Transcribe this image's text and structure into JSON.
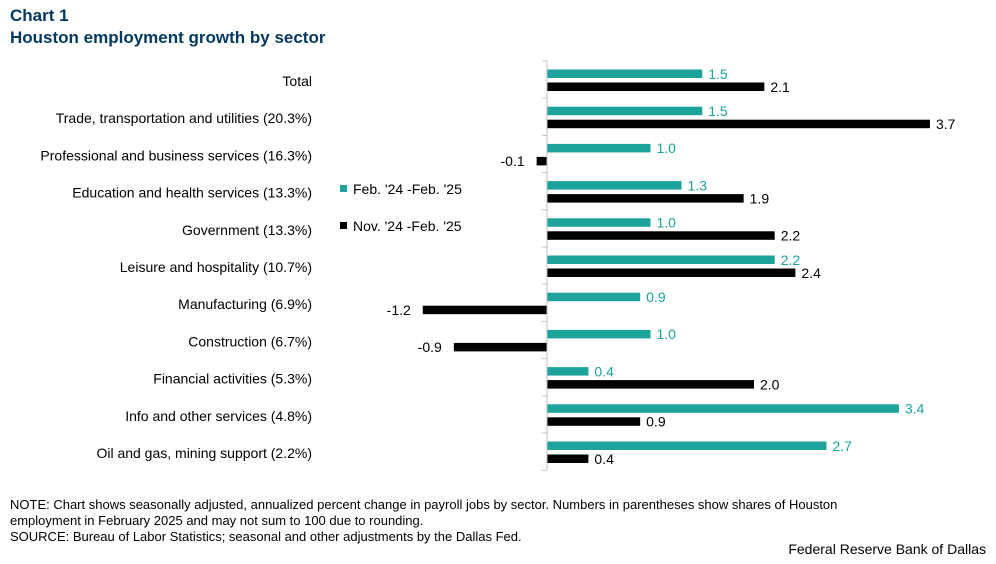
{
  "chart_data": {
    "type": "bar",
    "orientation": "horizontal",
    "label": "Chart 1",
    "title": "Houston employment growth by sector",
    "categories": [
      "Total",
      "Trade, transportation and utilities (20.3%)",
      "Professional and business services (16.3%)",
      "Education and health services (13.3%)",
      "Government (13.3%)",
      "Leisure and hospitality (10.7%)",
      "Manufacturing (6.9%)",
      "Construction (6.7%)",
      "Financial activities (5.3%)",
      "Info and other services (4.8%)",
      "Oil and gas, mining support (2.2%)"
    ],
    "series": [
      {
        "name": "Feb. '24 -Feb. '25",
        "color": "#1ba39c",
        "values": [
          1.5,
          1.5,
          1.0,
          1.3,
          1.0,
          2.2,
          0.9,
          1.0,
          0.4,
          3.4,
          2.7
        ],
        "labels": [
          "1.5",
          "1.5",
          "1.0",
          "1.3",
          "1.0",
          "2.2",
          "0.9",
          "1.0",
          "0.4",
          "3.4",
          "2.7"
        ]
      },
      {
        "name": "Nov. '24 -Feb. '25",
        "color": "#000000",
        "values": [
          2.1,
          3.7,
          -0.1,
          1.9,
          2.2,
          2.4,
          -1.2,
          -0.9,
          2.0,
          0.9,
          0.4
        ],
        "labels": [
          "2.1",
          "3.7",
          "-0.1",
          "1.9",
          "2.2",
          "2.4",
          "-1.2",
          "-0.9",
          "2.0",
          "0.9",
          "0.4"
        ]
      }
    ],
    "xlim": [
      -1.2,
      3.7
    ],
    "legend_position": "left-middle",
    "grid": false
  },
  "note_lines": [
    "NOTE: Chart shows seasonally adjusted, annualized percent change in payroll jobs by sector. Numbers in parentheses show shares of Houston",
    "employment in February 2025 and may not sum to 100 due to rounding."
  ],
  "source": "SOURCE: Bureau of Labor Statistics; seasonal and other adjustments by the Dallas Fed.",
  "credit": "Federal Reserve Bank of Dallas"
}
